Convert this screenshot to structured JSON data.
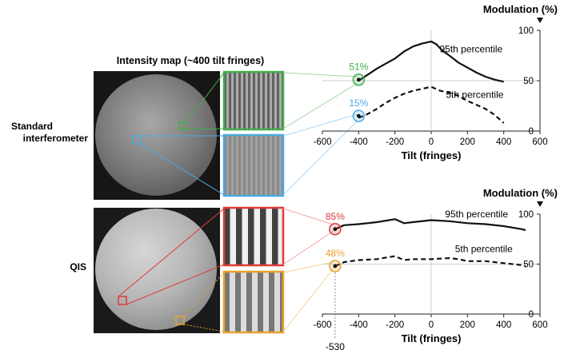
{
  "intensity_map_title": "Intensity map (~400 tilt fringes)",
  "rows": [
    {
      "label_line1": "Standard",
      "label_line2": "interferometer",
      "zoom_colors": [
        "#3fae49",
        "#4aa8e0"
      ],
      "callouts": [
        {
          "text": "51%",
          "color": "#3fae49"
        },
        {
          "text": "15%",
          "color": "#4aa8e0"
        }
      ]
    },
    {
      "label_line1": "QIS",
      "zoom_colors": [
        "#e03a3a",
        "#e8a22a"
      ],
      "callouts": [
        {
          "text": "85%",
          "color": "#e03a3a"
        },
        {
          "text": "48%",
          "color": "#e8a22a"
        }
      ]
    }
  ],
  "tilt_marker_label": "-530",
  "chart_data": [
    {
      "type": "line",
      "ylabel": "Modulation (%)",
      "xlabel": "Tilt (fringes)",
      "xlim": [
        -600,
        600
      ],
      "ylim": [
        0,
        100
      ],
      "x_ticks": [
        "-600",
        "-400",
        "-200",
        "0",
        "200",
        "400",
        "600"
      ],
      "y_ticks": [
        "0",
        "50",
        "100"
      ],
      "series": [
        {
          "name": "95th percentile",
          "style": "solid",
          "x": [
            -400,
            -350,
            -300,
            -250,
            -200,
            -150,
            -100,
            -50,
            0,
            30,
            60,
            100,
            150,
            200,
            250,
            300,
            350,
            400
          ],
          "values": [
            50,
            56,
            62,
            67,
            72,
            79,
            84,
            87,
            89,
            86,
            80,
            75,
            68,
            63,
            58,
            54,
            51,
            49
          ]
        },
        {
          "name": "5th percentile",
          "style": "dashed",
          "x": [
            -400,
            -350,
            -300,
            -250,
            -200,
            -150,
            -100,
            -50,
            0,
            50,
            100,
            150,
            200,
            250,
            300,
            350,
            400
          ],
          "values": [
            13,
            17,
            22,
            28,
            33,
            37,
            40,
            42,
            44,
            40,
            38,
            35,
            30,
            26,
            22,
            16,
            8
          ]
        }
      ]
    },
    {
      "type": "line",
      "ylabel": "Modulation (%)",
      "xlabel": "Tilt (fringes)",
      "xlim": [
        -600,
        600
      ],
      "ylim": [
        0,
        100
      ],
      "x_ticks": [
        "-600",
        "-400",
        "-200",
        "0",
        "200",
        "400",
        "600"
      ],
      "y_ticks": [
        "0",
        "50",
        "100"
      ],
      "series": [
        {
          "name": "95th percentile",
          "style": "solid",
          "x": [
            -530,
            -480,
            -400,
            -300,
            -200,
            -150,
            -100,
            0,
            100,
            200,
            300,
            400,
            500,
            520
          ],
          "values": [
            85,
            89,
            90,
            92,
            95,
            91,
            92,
            94,
            93,
            91,
            90,
            88,
            85,
            84
          ]
        },
        {
          "name": "5th percentile",
          "style": "dashed",
          "x": [
            -530,
            -480,
            -400,
            -300,
            -200,
            -150,
            -100,
            0,
            100,
            150,
            200,
            300,
            400,
            500,
            520
          ],
          "values": [
            48,
            52,
            54,
            55,
            58,
            54,
            55,
            55,
            56,
            55,
            53,
            53,
            51,
            49,
            48
          ]
        }
      ]
    }
  ]
}
